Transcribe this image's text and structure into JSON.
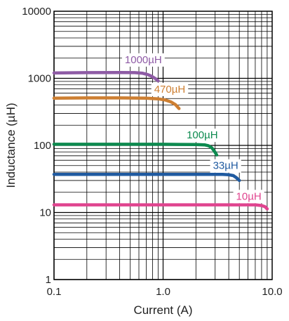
{
  "chart_data": {
    "type": "line",
    "title": "",
    "xlabel": "Current (A)",
    "ylabel": "Inductance (µH)",
    "x_scale": "log",
    "y_scale": "log",
    "xlim": [
      0.1,
      10.0
    ],
    "ylim": [
      1,
      10000
    ],
    "x_tick_labels": [
      "0.1",
      "1.0",
      "10.0"
    ],
    "x_tick_values": [
      0.1,
      1.0,
      10.0
    ],
    "y_tick_labels": [
      "1",
      "10",
      "100",
      "1000",
      "10000"
    ],
    "y_tick_values": [
      1,
      10,
      100,
      1000,
      10000
    ],
    "grid": true,
    "series": [
      {
        "name": "1000µH",
        "color": "#8e5ba5",
        "x": [
          0.1,
          0.2,
          0.4,
          0.55,
          0.65,
          0.72,
          0.78,
          0.85,
          0.9
        ],
        "y": [
          1200,
          1215,
          1220,
          1215,
          1190,
          1140,
          1080,
          990,
          920
        ]
      },
      {
        "name": "470µH",
        "color": "#cd7f32",
        "x": [
          0.1,
          0.2,
          0.4,
          0.7,
          0.9,
          1.05,
          1.18,
          1.3,
          1.4
        ],
        "y": [
          505,
          510,
          510,
          505,
          495,
          475,
          445,
          405,
          355
        ]
      },
      {
        "name": "100µH",
        "color": "#0d8a4f",
        "x": [
          0.1,
          0.3,
          1.0,
          2.0,
          2.4,
          2.6,
          2.8,
          2.95,
          3.1
        ],
        "y": [
          104,
          104,
          104,
          103,
          102,
          99,
          92,
          82,
          72
        ]
      },
      {
        "name": "33µH",
        "color": "#1f5aa0",
        "x": [
          0.1,
          0.5,
          2.0,
          3.5,
          4.0,
          4.4,
          4.7,
          5.0
        ],
        "y": [
          37,
          37,
          37,
          37,
          36.5,
          35.5,
          33,
          30
        ]
      },
      {
        "name": "10µH",
        "color": "#e0448f",
        "x": [
          0.1,
          1.0,
          5.0,
          7.0,
          8.0,
          8.6,
          9.0
        ],
        "y": [
          13,
          13,
          13,
          13,
          12.7,
          12.2,
          11.3
        ]
      }
    ]
  }
}
